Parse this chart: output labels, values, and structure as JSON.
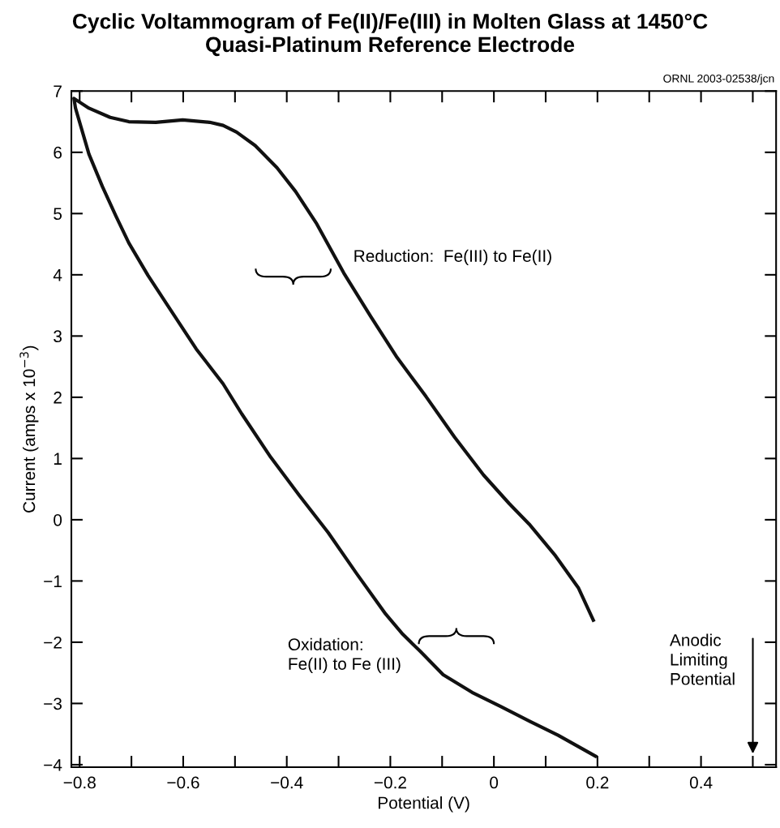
{
  "chart_data": {
    "type": "line",
    "title": "Cyclic Voltammogram of Fe(II)/Fe(III) in Molten Glass at 1450°C",
    "subtitle": "Quasi-Platinum Reference Electrode",
    "xlabel": "Potential (V)",
    "ylabel": "Current (amps x 10$^{−3}$)",
    "annotations": [
      "ORNL 2003-02538/jcn",
      "Reduction:  Fe(III) to Fe(II)",
      "Oxidation:\nFe(II) to Fe (III)",
      "Anodic\nLimiting\nPotential"
    ],
    "series": [
      {
        "color": "#111111",
        "x": [
          0.196,
          0.124,
          0.069,
          0.013,
          -0.042,
          -0.098,
          -0.142,
          -0.176,
          -0.209,
          -0.265,
          -0.32,
          -0.376,
          -0.431,
          -0.487,
          -0.523,
          -0.575,
          -0.627,
          -0.668,
          -0.705,
          -0.73,
          -0.756,
          -0.782,
          -0.808,
          -0.811,
          -0.782,
          -0.741,
          -0.705,
          -0.653,
          -0.601,
          -0.549,
          -0.523,
          -0.497,
          -0.461,
          -0.419,
          -0.383,
          -0.342,
          -0.29,
          -0.238,
          -0.187,
          -0.131,
          -0.076,
          -0.02,
          0.03,
          0.068,
          0.119,
          0.163,
          0.192
        ],
        "values": [
          -3.86,
          -3.52,
          -3.29,
          -3.05,
          -2.82,
          -2.53,
          -2.15,
          -1.87,
          -1.54,
          -0.88,
          -0.21,
          0.4,
          1.02,
          1.73,
          2.22,
          2.79,
          3.46,
          3.99,
          4.52,
          4.96,
          5.44,
          5.97,
          6.72,
          6.88,
          6.72,
          6.57,
          6.5,
          6.49,
          6.53,
          6.49,
          6.44,
          6.33,
          6.11,
          5.75,
          5.36,
          4.83,
          4.03,
          3.32,
          2.65,
          2.01,
          1.35,
          0.73,
          0.26,
          -0.07,
          -0.59,
          -1.11,
          -1.64
        ]
      }
    ],
    "xlim": [
      -0.816,
      0.545
    ],
    "ylim": [
      -4.04,
      7
    ],
    "xticks": [
      {
        "value": -0.8,
        "label": "−0.8"
      },
      {
        "value": -0.7,
        "label": null
      },
      {
        "value": -0.6,
        "label": "−0.6"
      },
      {
        "value": -0.5,
        "label": null
      },
      {
        "value": -0.4,
        "label": "−0.4"
      },
      {
        "value": -0.3,
        "label": null
      },
      {
        "value": -0.2,
        "label": "−0.2"
      },
      {
        "value": -0.1,
        "label": null
      },
      {
        "value": 0,
        "label": "0"
      },
      {
        "value": 0.1,
        "label": null
      },
      {
        "value": 0.2,
        "label": "0.2"
      },
      {
        "value": 0.3,
        "label": null
      },
      {
        "value": 0.4,
        "label": "0.4"
      },
      {
        "value": 0.5,
        "label": null
      }
    ],
    "yticks": [
      {
        "value": -4,
        "label": "−4"
      },
      {
        "value": -3,
        "label": "−3"
      },
      {
        "value": -2,
        "label": "−2"
      },
      {
        "value": -1,
        "label": "−1"
      },
      0,
      1,
      2,
      3,
      4,
      5,
      6,
      7
    ],
    "grid": false,
    "legend": false,
    "marker": "none",
    "line_style": "solid"
  }
}
